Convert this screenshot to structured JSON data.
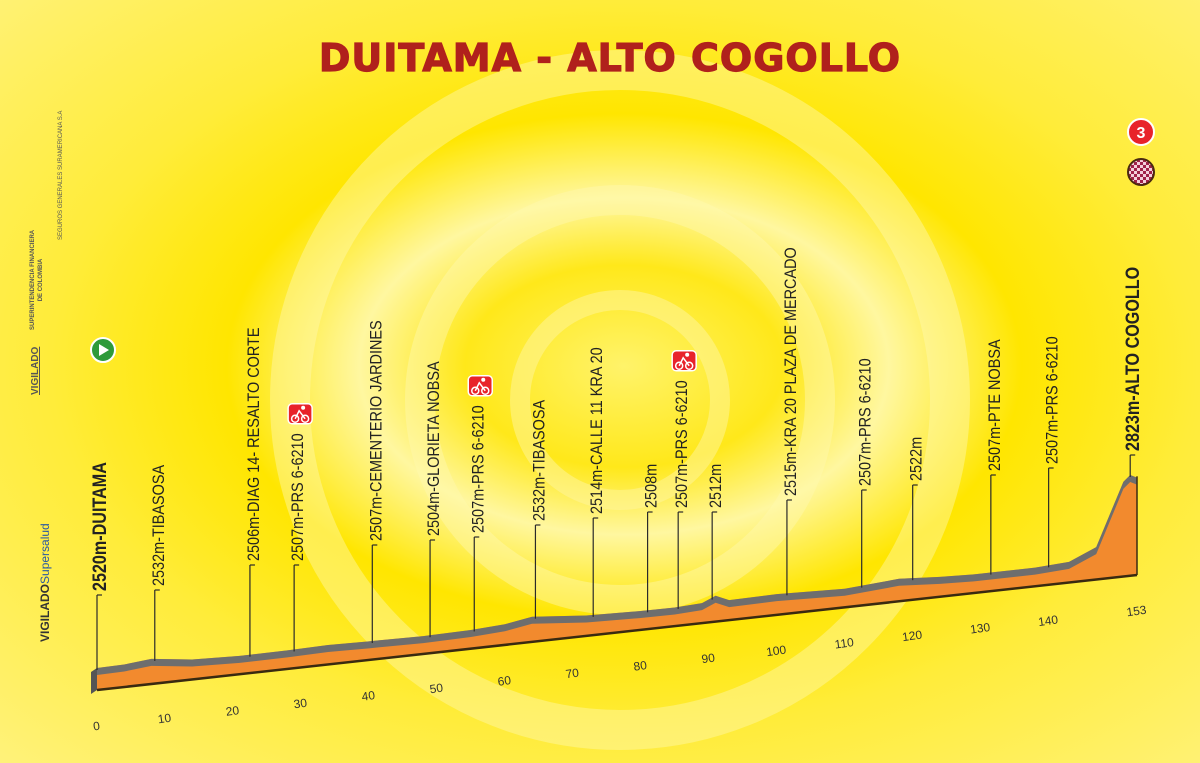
{
  "title": "DUITAMA - ALTO COGOLLO",
  "sidebar": {
    "vigilado": "VIGILADO",
    "superfinanciera": "SUPERINTENDENCIA FINANCIERA",
    "superfinanciera_2": "DE COLOMBIA",
    "seguros": "SEGUROS GENERALES SURAMERICANA S.A",
    "supersalud_vigilado": "VIGILADO",
    "supersalud": "Supersalud"
  },
  "finish_badge": {
    "category": "3",
    "icon": "checkered-flag-icon",
    "color": "#e8232a"
  },
  "colors": {
    "background": "#ffe600",
    "title": "#b0211c",
    "profile_fill": "#f28a2e",
    "road": "#6e6e6e",
    "start": "#2e9a3a",
    "sprint": "#e8232a"
  },
  "chart_data": {
    "type": "area",
    "title": "DUITAMA - ALTO COGOLLO",
    "xlabel": "",
    "ylabel": "",
    "x_unit": "km",
    "y_unit": "m",
    "xlim": [
      0,
      153
    ],
    "x_ticks": [
      "0",
      "10",
      "20",
      "30",
      "40",
      "50",
      "60",
      "70",
      "80",
      "90",
      "100",
      "110",
      "120",
      "130",
      "140",
      "153"
    ],
    "profile": [
      {
        "km": 0,
        "elev": 2520
      },
      {
        "km": 4,
        "elev": 2522
      },
      {
        "km": 8,
        "elev": 2532
      },
      {
        "km": 14,
        "elev": 2512
      },
      {
        "km": 21,
        "elev": 2506
      },
      {
        "km": 28,
        "elev": 2507
      },
      {
        "km": 34,
        "elev": 2510
      },
      {
        "km": 40,
        "elev": 2507
      },
      {
        "km": 48,
        "elev": 2504
      },
      {
        "km": 55,
        "elev": 2507
      },
      {
        "km": 60,
        "elev": 2515
      },
      {
        "km": 64,
        "elev": 2532
      },
      {
        "km": 72,
        "elev": 2514
      },
      {
        "km": 80,
        "elev": 2508
      },
      {
        "km": 85,
        "elev": 2507
      },
      {
        "km": 89,
        "elev": 2512
      },
      {
        "km": 91,
        "elev": 2535
      },
      {
        "km": 93,
        "elev": 2512
      },
      {
        "km": 100,
        "elev": 2515
      },
      {
        "km": 110,
        "elev": 2507
      },
      {
        "km": 118,
        "elev": 2522
      },
      {
        "km": 124,
        "elev": 2512
      },
      {
        "km": 129,
        "elev": 2507
      },
      {
        "km": 138,
        "elev": 2507
      },
      {
        "km": 143,
        "elev": 2515
      },
      {
        "km": 147,
        "elev": 2560
      },
      {
        "km": 149,
        "elev": 2680
      },
      {
        "km": 151,
        "elev": 2800
      },
      {
        "km": 152,
        "elev": 2823
      },
      {
        "km": 153,
        "elev": 2810
      }
    ],
    "markers": [
      {
        "km": 0,
        "label": "2520m-DUITAMA",
        "bold": true,
        "icon": "start"
      },
      {
        "km": 8.5,
        "label": "2532m-TIBASOSA"
      },
      {
        "km": 22.5,
        "label": "2506m-DIAG 14- RESALTO CORTE"
      },
      {
        "km": 29,
        "label": "2507m-PRS 6-6210",
        "icon": "sprint"
      },
      {
        "km": 40.5,
        "label": "2507m-CEMENTERIO JARDINES"
      },
      {
        "km": 49,
        "label": "2504m-GLORIETA NOBSA"
      },
      {
        "km": 55.5,
        "label": "2507m-PRS 6-6210",
        "icon": "sprint"
      },
      {
        "km": 64.5,
        "label": "2532m-TIBASOSA"
      },
      {
        "km": 73,
        "label": "2514m-CALLE 11 KRA 20"
      },
      {
        "km": 81,
        "label": "2508m"
      },
      {
        "km": 85.5,
        "label": "2507m-PRS 6-6210",
        "icon": "sprint"
      },
      {
        "km": 90.5,
        "label": "2512m"
      },
      {
        "km": 101.5,
        "label": "2515m-KRA 20 PLAZA DE MERCADO"
      },
      {
        "km": 112.5,
        "label": "2507m-PRS 6-6210"
      },
      {
        "km": 120,
        "label": "2522m"
      },
      {
        "km": 131.5,
        "label": "2507m-PTE NOBSA"
      },
      {
        "km": 140,
        "label": "2507m-PRS 6-6210"
      },
      {
        "km": 152,
        "label": "2823m-ALTO COGOLLO",
        "bold": true,
        "icon": "finish"
      }
    ]
  }
}
